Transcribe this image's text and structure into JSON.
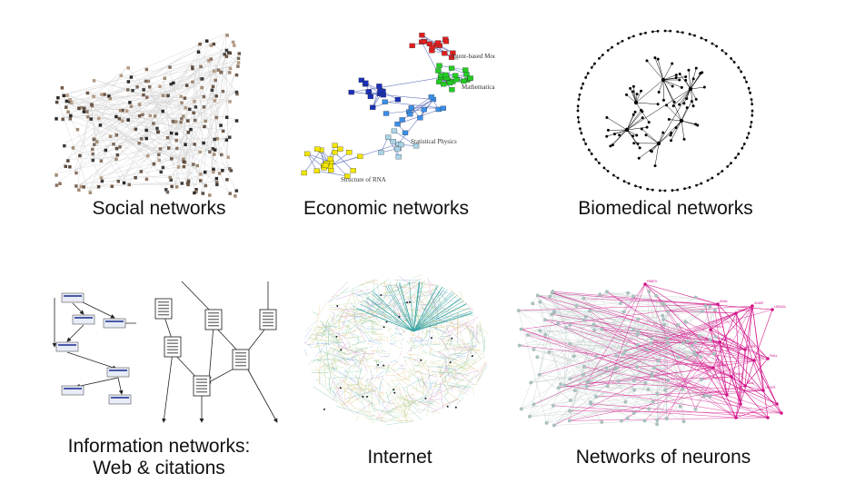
{
  "panels": [
    {
      "caption": "Social networks"
    },
    {
      "caption": "Economic networks",
      "labels": [
        "Agent-based Models",
        "Mathematical Ecology",
        "Statistical Physics",
        "Structure of RNA"
      ]
    },
    {
      "caption": "Biomedical networks"
    },
    {
      "caption_line1": "Information networks:",
      "caption_line2": "Web & citations"
    },
    {
      "caption": "Internet"
    },
    {
      "caption": "Networks of neurons",
      "node_labels": [
        "RMEV",
        "AVAL",
        "SMBDL",
        "AVAR",
        "URADL",
        "URAVL",
        "RMED",
        "AIZR",
        "RIBL",
        "RIAL",
        "SAADR",
        "AVDL",
        "ALA",
        "URXR"
      ]
    }
  ],
  "colors": {
    "economic_clusters": [
      "#e02020",
      "#22cc22",
      "#1a2fb8",
      "#3a8ee8",
      "#a9d4e8",
      "#f2e600"
    ],
    "neuron_edges": "#d2148a",
    "neuron_nodes": "#a9c4c0"
  }
}
